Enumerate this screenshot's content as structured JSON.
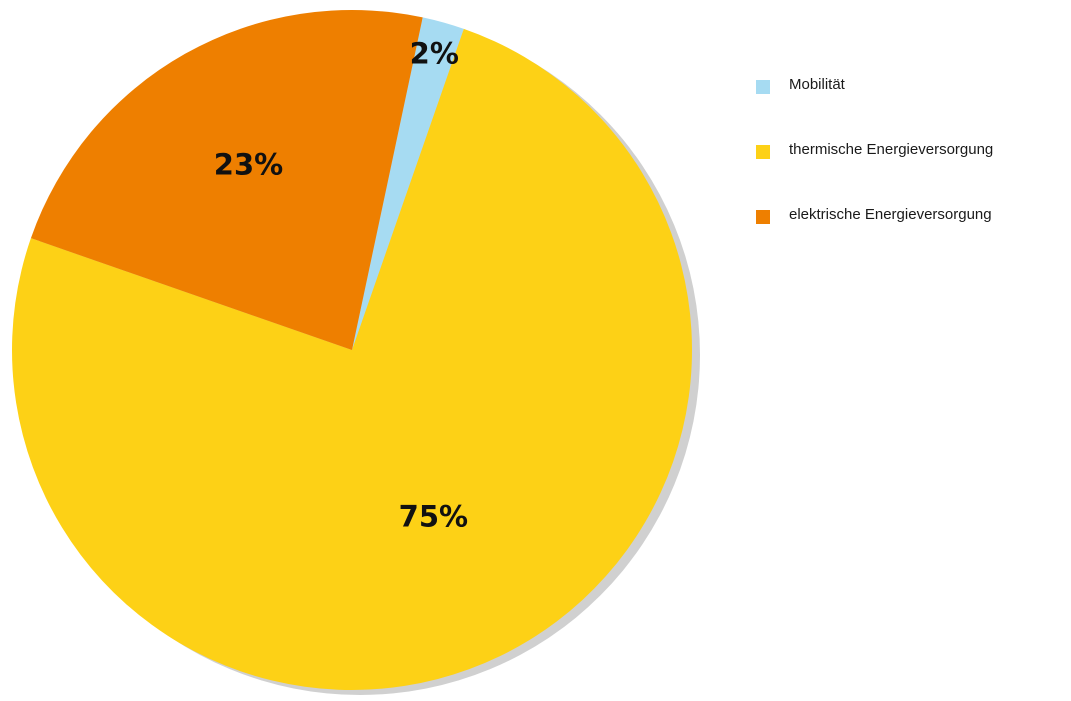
{
  "chart_data": {
    "type": "pie",
    "title": "",
    "slices": [
      {
        "label": "Mobilität",
        "value": 2,
        "display": "2%",
        "color": "#a6dbf2"
      },
      {
        "label": "thermische  Energieversorgung",
        "value": 75,
        "display": "75%",
        "color": "#fdd116"
      },
      {
        "label": "elektrische Energieversorgung",
        "value": 23,
        "display": "23%",
        "color": "#ee7f00"
      }
    ],
    "legend_position": "right",
    "shadow_color": "#d0d0d0"
  }
}
